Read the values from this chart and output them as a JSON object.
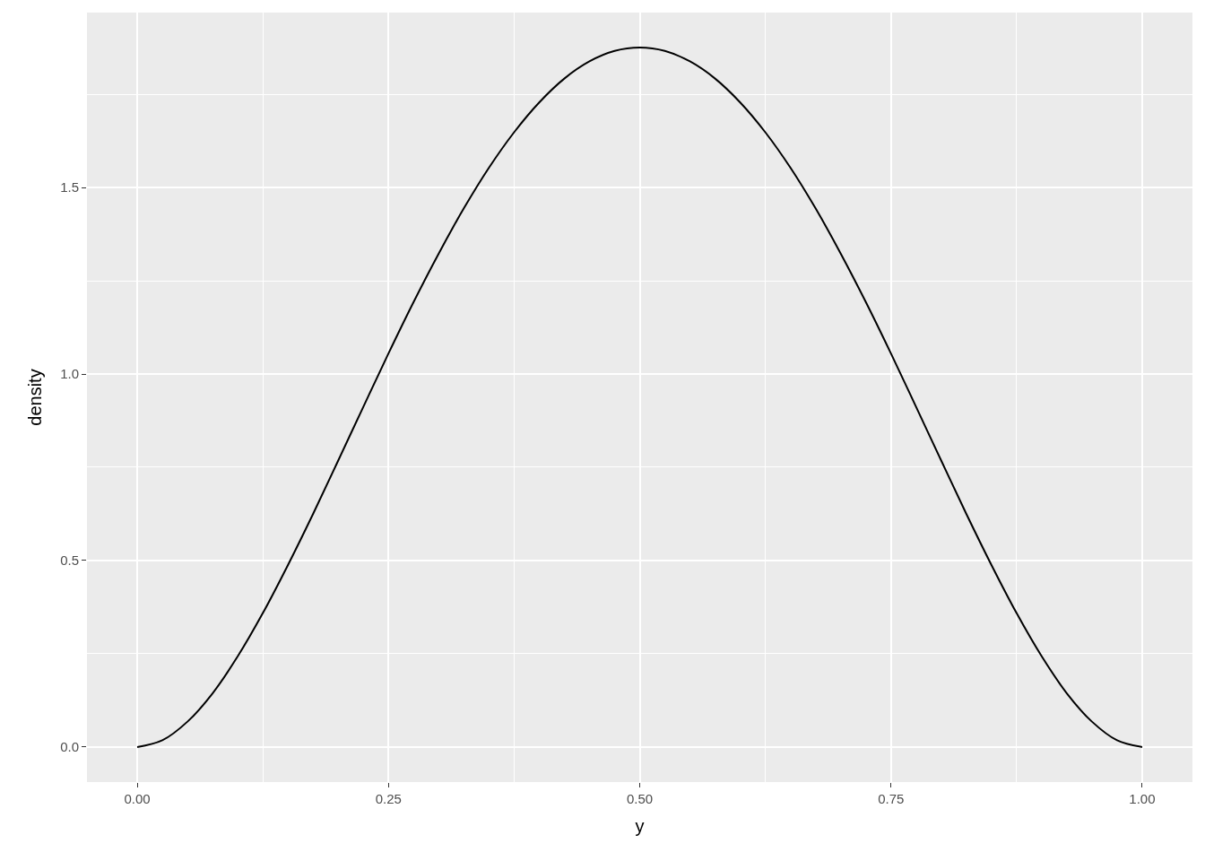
{
  "chart_data": {
    "type": "line",
    "xlabel": "y",
    "ylabel": "density",
    "x": [
      0,
      0.025,
      0.05,
      0.075,
      0.1,
      0.125,
      0.15,
      0.175,
      0.2,
      0.225,
      0.25,
      0.275,
      0.3,
      0.325,
      0.35,
      0.375,
      0.4,
      0.425,
      0.45,
      0.475,
      0.5,
      0.525,
      0.55,
      0.575,
      0.6,
      0.625,
      0.65,
      0.675,
      0.7,
      0.725,
      0.75,
      0.775,
      0.8,
      0.825,
      0.85,
      0.875,
      0.9,
      0.925,
      0.95,
      0.975,
      1
    ],
    "series": [
      {
        "color": "#000000",
        "values": [
          0,
          0.018,
          0.068,
          0.144,
          0.243,
          0.359,
          0.488,
          0.625,
          0.768,
          0.912,
          1.055,
          1.193,
          1.323,
          1.444,
          1.553,
          1.648,
          1.728,
          1.792,
          1.838,
          1.866,
          1.875,
          1.866,
          1.838,
          1.792,
          1.728,
          1.648,
          1.553,
          1.444,
          1.323,
          1.193,
          1.055,
          0.912,
          0.768,
          0.625,
          0.488,
          0.359,
          0.243,
          0.144,
          0.068,
          0.018,
          0
        ]
      }
    ],
    "xlim": [
      -0.05,
      1.05
    ],
    "ylim": [
      -0.094,
      1.969
    ],
    "xticks": [
      {
        "value": 0,
        "label": "0.00"
      },
      {
        "value": 0.25,
        "label": "0.25"
      },
      {
        "value": 0.5,
        "label": "0.50"
      },
      {
        "value": 0.75,
        "label": "0.75"
      },
      {
        "value": 1,
        "label": "1.00"
      }
    ],
    "yticks": [
      {
        "value": 0,
        "label": "0.0"
      },
      {
        "value": 0.5,
        "label": "0.5"
      },
      {
        "value": 1,
        "label": "1.0"
      },
      {
        "value": 1.5,
        "label": "1.5"
      }
    ],
    "grid": true,
    "marker": "none",
    "line_style": "solid"
  }
}
